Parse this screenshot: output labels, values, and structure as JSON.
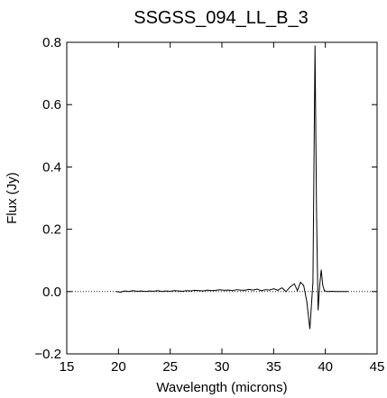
{
  "chart_data": {
    "type": "line",
    "title": "SSGSS_094_LL_B_3",
    "xlabel": "Wavelength (microns)",
    "ylabel": "Flux (Jy)",
    "xlim": [
      15,
      45
    ],
    "ylim": [
      -0.2,
      0.8
    ],
    "xticks": [
      "15",
      "20",
      "25",
      "30",
      "35",
      "40",
      "45"
    ],
    "yticks": [
      "−0.2",
      "0.0",
      "0.2",
      "0.4",
      "0.6",
      "0.8"
    ],
    "zero_line": "dotted",
    "grid": false,
    "series": [
      {
        "x": [
          19.8,
          20.2,
          20.6,
          21.0,
          21.4,
          21.8,
          22.2,
          22.6,
          23.0,
          23.4,
          23.8,
          24.2,
          24.6,
          25.0,
          25.4,
          25.8,
          26.2,
          26.6,
          27.0,
          27.4,
          27.8,
          28.2,
          28.6,
          29.0,
          29.4,
          29.8,
          30.2,
          30.6,
          31.0,
          31.4,
          31.8,
          32.2,
          32.6,
          33.0,
          33.4,
          33.8,
          34.2,
          34.6,
          35.0,
          35.4,
          35.8,
          36.2,
          36.6,
          37.0,
          37.3,
          37.6,
          37.9,
          38.2,
          38.5,
          38.8,
          39.0,
          39.15,
          39.3,
          39.45,
          39.6,
          39.75,
          39.9,
          40.2,
          40.6,
          41.0,
          41.4,
          41.8,
          42.2
        ],
        "y": [
          0.0,
          -0.002,
          0.002,
          0.0,
          0.003,
          0.001,
          0.002,
          0.0,
          0.002,
          0.001,
          0.003,
          0.0,
          0.002,
          0.001,
          0.003,
          0.002,
          0.001,
          0.003,
          0.002,
          0.004,
          0.003,
          0.002,
          0.005,
          0.003,
          0.004,
          0.006,
          0.004,
          0.005,
          0.003,
          0.006,
          0.005,
          0.004,
          0.007,
          0.005,
          0.008,
          0.003,
          0.006,
          0.005,
          0.009,
          0.004,
          0.012,
          0.0,
          0.015,
          0.025,
          0.003,
          0.03,
          0.02,
          -0.03,
          -0.12,
          0.03,
          0.79,
          0.25,
          -0.06,
          0.02,
          0.07,
          0.02,
          0.003,
          0.0,
          0.001,
          0.0,
          0.0,
          0.0,
          0.0
        ]
      }
    ]
  }
}
